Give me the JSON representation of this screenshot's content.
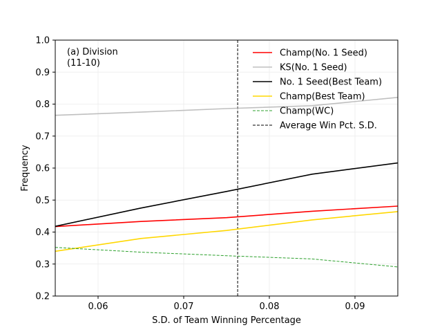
{
  "chart_data": {
    "type": "line",
    "annotation": [
      "(a) Division",
      "(11-10)"
    ],
    "xlabel": "S.D. of Team Winning Percentage",
    "ylabel": "Frequency",
    "xlim": [
      0.055,
      0.095
    ],
    "ylim": [
      0.2,
      1.0
    ],
    "xticks": [
      0.06,
      0.07,
      0.08,
      0.09
    ],
    "xtick_labels": [
      "0.06",
      "0.07",
      "0.08",
      "0.09"
    ],
    "yticks": [
      0.2,
      0.3,
      0.4,
      0.5,
      0.6,
      0.7,
      0.8,
      0.9,
      1.0
    ],
    "ytick_labels": [
      "0.2",
      "0.3",
      "0.4",
      "0.5",
      "0.6",
      "0.7",
      "0.8",
      "0.9",
      "1.0"
    ],
    "grid": true,
    "legend_position": "top-right",
    "x": [
      0.055,
      0.065,
      0.075,
      0.085,
      0.095
    ],
    "series": [
      {
        "name": "Champ(No. 1 Seed)",
        "color": "#ff0000",
        "style": "solid",
        "values": [
          0.417,
          0.433,
          0.445,
          0.465,
          0.481
        ]
      },
      {
        "name": "KS(No. 1 Seed)",
        "color": "#bfbfbf",
        "style": "solid",
        "values": [
          0.765,
          0.775,
          0.786,
          0.795,
          0.821
        ]
      },
      {
        "name": "No. 1 Seed(Best Team)",
        "color": "#000000",
        "style": "solid",
        "values": [
          0.418,
          0.475,
          0.527,
          0.581,
          0.616
        ]
      },
      {
        "name": "Champ(Best Team)",
        "color": "#ffd700",
        "style": "solid",
        "values": [
          0.34,
          0.38,
          0.405,
          0.438,
          0.464
        ]
      },
      {
        "name": "Champ(WC)",
        "color": "#2ca02c",
        "style": "dashed",
        "values": [
          0.352,
          0.337,
          0.326,
          0.316,
          0.291
        ]
      }
    ],
    "vline": {
      "name": "Average Win Pct. S.D.",
      "x": 0.0763,
      "color": "#000000",
      "style": "dashed"
    }
  }
}
